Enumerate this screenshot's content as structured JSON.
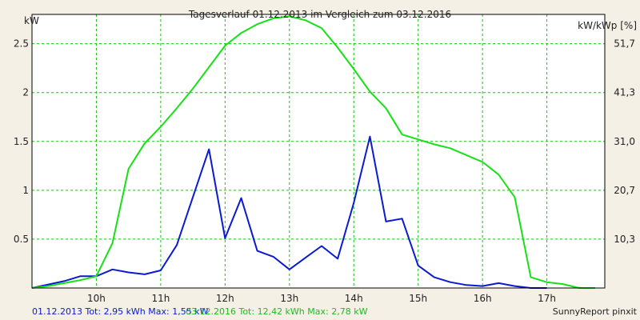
{
  "chart_data": {
    "type": "line",
    "title": "Tagesverlauf 01.12.2013 im Vergleich zum 03.12.2016",
    "ylabel_left": "kW",
    "ylabel_right": "kW/kWp [%]",
    "x_range_hours": [
      9.0,
      17.9
    ],
    "x_ticks": [
      {
        "value": 10,
        "label": "10h"
      },
      {
        "value": 11,
        "label": "11h"
      },
      {
        "value": 12,
        "label": "12h"
      },
      {
        "value": 13,
        "label": "13h"
      },
      {
        "value": 14,
        "label": "14h"
      },
      {
        "value": 15,
        "label": "15h"
      },
      {
        "value": 16,
        "label": "16h"
      },
      {
        "value": 17,
        "label": "17h"
      }
    ],
    "ylim": [
      0,
      2.8
    ],
    "y_ticks_left": [
      {
        "value": 0.5,
        "label": "0.5"
      },
      {
        "value": 1,
        "label": "1"
      },
      {
        "value": 1.5,
        "label": "1.5"
      },
      {
        "value": 2,
        "label": "2"
      },
      {
        "value": 2.5,
        "label": "2.5"
      }
    ],
    "y_ticks_right": [
      {
        "value": 0.5,
        "label": "10,3"
      },
      {
        "value": 1,
        "label": "20,7"
      },
      {
        "value": 1.5,
        "label": "31,0"
      },
      {
        "value": 2,
        "label": "41,3"
      },
      {
        "value": 2.5,
        "label": "51,7"
      }
    ],
    "grid": true,
    "series": [
      {
        "name": "01.12.2013",
        "color": "#0a1ad0",
        "points": [
          [
            9.0,
            0.0
          ],
          [
            9.5,
            0.07
          ],
          [
            9.75,
            0.12
          ],
          [
            10.0,
            0.12
          ],
          [
            10.25,
            0.19
          ],
          [
            10.5,
            0.16
          ],
          [
            10.75,
            0.14
          ],
          [
            11.0,
            0.18
          ],
          [
            11.25,
            0.44
          ],
          [
            11.5,
            0.93
          ],
          [
            11.75,
            1.42
          ],
          [
            12.0,
            0.51
          ],
          [
            12.25,
            0.92
          ],
          [
            12.5,
            0.38
          ],
          [
            12.75,
            0.32
          ],
          [
            13.0,
            0.19
          ],
          [
            13.25,
            0.31
          ],
          [
            13.5,
            0.43
          ],
          [
            13.75,
            0.3
          ],
          [
            14.0,
            0.87
          ],
          [
            14.25,
            1.55
          ],
          [
            14.5,
            0.68
          ],
          [
            14.75,
            0.71
          ],
          [
            15.0,
            0.23
          ],
          [
            15.25,
            0.11
          ],
          [
            15.5,
            0.06
          ],
          [
            15.75,
            0.03
          ],
          [
            16.0,
            0.02
          ],
          [
            16.25,
            0.05
          ],
          [
            16.5,
            0.02
          ],
          [
            16.75,
            0.0
          ],
          [
            17.0,
            0.0
          ]
        ]
      },
      {
        "name": "03.12.2016",
        "color": "#18e018",
        "points": [
          [
            9.0,
            0.0
          ],
          [
            9.25,
            0.02
          ],
          [
            9.5,
            0.05
          ],
          [
            9.75,
            0.08
          ],
          [
            10.0,
            0.12
          ],
          [
            10.25,
            0.46
          ],
          [
            10.5,
            1.22
          ],
          [
            10.75,
            1.48
          ],
          [
            11.0,
            1.65
          ],
          [
            11.25,
            1.84
          ],
          [
            11.5,
            2.04
          ],
          [
            11.75,
            2.26
          ],
          [
            12.0,
            2.48
          ],
          [
            12.25,
            2.61
          ],
          [
            12.5,
            2.7
          ],
          [
            12.75,
            2.76
          ],
          [
            13.0,
            2.78
          ],
          [
            13.25,
            2.74
          ],
          [
            13.5,
            2.66
          ],
          [
            13.75,
            2.46
          ],
          [
            14.0,
            2.24
          ],
          [
            14.25,
            2.01
          ],
          [
            14.5,
            1.84
          ],
          [
            14.75,
            1.57
          ],
          [
            15.0,
            1.52
          ],
          [
            15.25,
            1.47
          ],
          [
            15.5,
            1.43
          ],
          [
            15.75,
            1.36
          ],
          [
            16.0,
            1.29
          ],
          [
            16.25,
            1.16
          ],
          [
            16.5,
            0.93
          ],
          [
            16.75,
            0.11
          ],
          [
            17.0,
            0.06
          ],
          [
            17.25,
            0.04
          ],
          [
            17.5,
            0.0
          ],
          [
            17.75,
            0.0
          ]
        ]
      }
    ]
  },
  "footer": {
    "stats_2013": "01.12.2013 Tot: 2,95 kWh Max: 1,55 kW",
    "stats_2016": "03.12.2016 Tot: 12,42 kWh Max: 2,78 kW",
    "credit": "SunnyReport pinxit"
  },
  "colors": {
    "background": "#f4f0e6",
    "plot_background": "#ffffff",
    "grid": "#18c018",
    "series_2013": "#0a1ad0",
    "series_2016": "#18e018"
  }
}
